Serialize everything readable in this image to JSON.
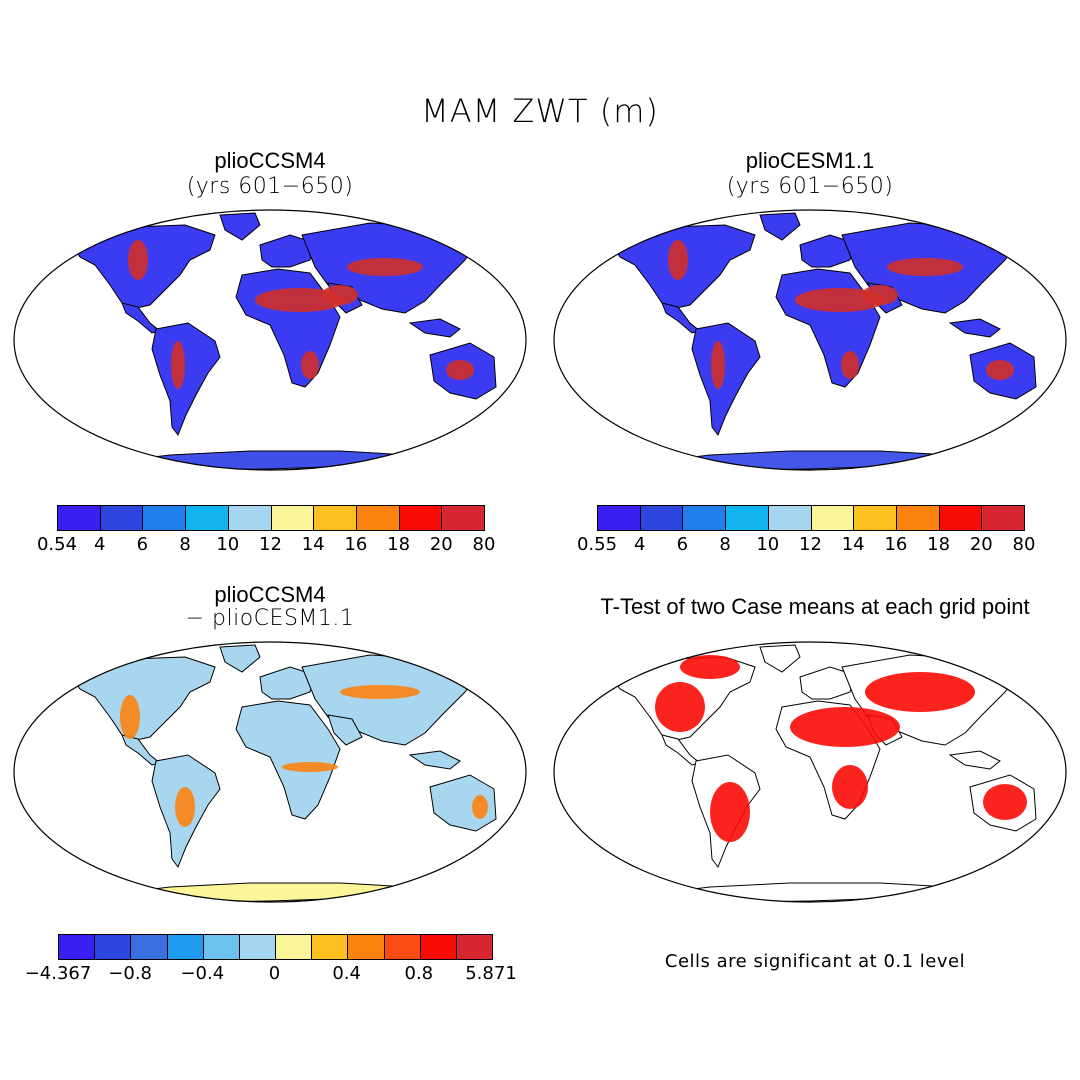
{
  "figure": {
    "title": "MAM ZWT (m)",
    "note": "Cells are significant at 0.1 level"
  },
  "panels": [
    {
      "title": "plioCCSM4",
      "subtitle": "(yrs 601−650)",
      "type": "field",
      "colorbar_labels": [
        "0.54",
        "4",
        "6",
        "8",
        "10",
        "12",
        "14",
        "16",
        "18",
        "20",
        "80"
      ],
      "palette": [
        "#3a1ff5",
        "#2e46e0",
        "#1f7fef",
        "#12b4f0",
        "#a5d6ef",
        "#fdf59a",
        "#fdc021",
        "#fb8411",
        "#fb0b05",
        "#d7262f"
      ],
      "land_base": "#3b3cf2",
      "hotspot_color": "#d22f2a",
      "antarctica_color": "#3f4fe8"
    },
    {
      "title": "plioCESM1.1",
      "subtitle": "(yrs 601−650)",
      "type": "field",
      "colorbar_labels": [
        "0.55",
        "4",
        "6",
        "8",
        "10",
        "12",
        "14",
        "16",
        "18",
        "20",
        "80"
      ],
      "palette": [
        "#3a1ff5",
        "#2e46e0",
        "#1f7fef",
        "#12b4f0",
        "#a5d6ef",
        "#fdf59a",
        "#fdc021",
        "#fb8411",
        "#fb0b05",
        "#d7262f"
      ],
      "land_base": "#3b3cf2",
      "hotspot_color": "#d22f2a",
      "antarctica_color": "#4457ea"
    },
    {
      "title": "plioCCSM4",
      "subtitle": "− plioCESM1.1",
      "type": "difference",
      "colorbar_labels": [
        "−4.367",
        "−0.8",
        "−0.4",
        "0",
        "0.4",
        "0.8",
        "5.871"
      ],
      "palette": [
        "#3a1ff5",
        "#2e46e0",
        "#3a6fdf",
        "#1f9cef",
        "#6cc3ef",
        "#a5d6ef",
        "#fdf59a",
        "#fdc021",
        "#fb8411",
        "#fb4a12",
        "#fb0b05",
        "#d7262f"
      ],
      "land_base": "#a8d6ee",
      "hotspot_color": "#fb8411",
      "antarctica_color": "#fdf59a"
    },
    {
      "title": "T-Test of two Case means at each grid point",
      "subtitle": "",
      "type": "significance",
      "land_base": "#ffffff",
      "hotspot_color": "#fb0b05",
      "antarctica_color": "#ffffff"
    }
  ]
}
